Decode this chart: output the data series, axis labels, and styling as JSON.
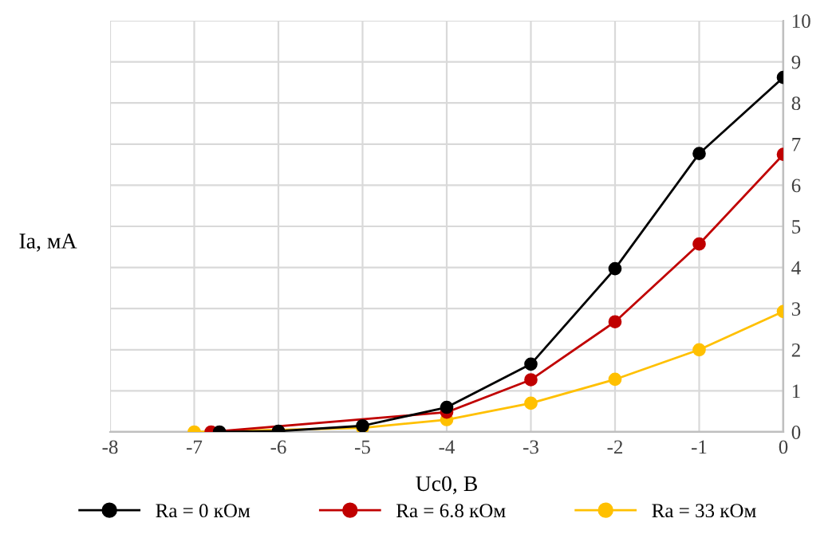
{
  "chart_data": {
    "type": "line",
    "xlabel": "Uc0, В",
    "ylabel": "Ia, мА",
    "xlim": [
      -8,
      0
    ],
    "xticks": [
      -8,
      -7,
      -6,
      -5,
      -4,
      -3,
      -2,
      -1,
      0
    ],
    "ylim": [
      0,
      10
    ],
    "yticks": [
      0,
      1,
      2,
      3,
      4,
      5,
      6,
      7,
      8,
      9,
      10
    ],
    "grid": true,
    "legend": "bottom",
    "marker": "circle",
    "line_style": "solid",
    "series": [
      {
        "name": "Ra = 0 кОм",
        "color": "#000000",
        "x": [
          -6.7,
          -6,
          -5,
          -4,
          -3,
          -2,
          -1,
          0
        ],
        "values": [
          0,
          0.02,
          0.15,
          0.6,
          1.65,
          3.97,
          6.77,
          8.62
        ]
      },
      {
        "name": "Ra = 6.8 кОм",
        "color": "#c00000",
        "x": [
          -6.8,
          -4,
          -3,
          -2,
          -1,
          0
        ],
        "values": [
          0,
          0.48,
          1.27,
          2.68,
          4.57,
          6.75
        ]
      },
      {
        "name": "Ra = 33 кОм",
        "color": "#ffc000",
        "x": [
          -7,
          -5,
          -4,
          -3,
          -2,
          -1,
          0
        ],
        "values": [
          0,
          0.1,
          0.3,
          0.7,
          1.28,
          2.0,
          2.93
        ]
      }
    ]
  }
}
